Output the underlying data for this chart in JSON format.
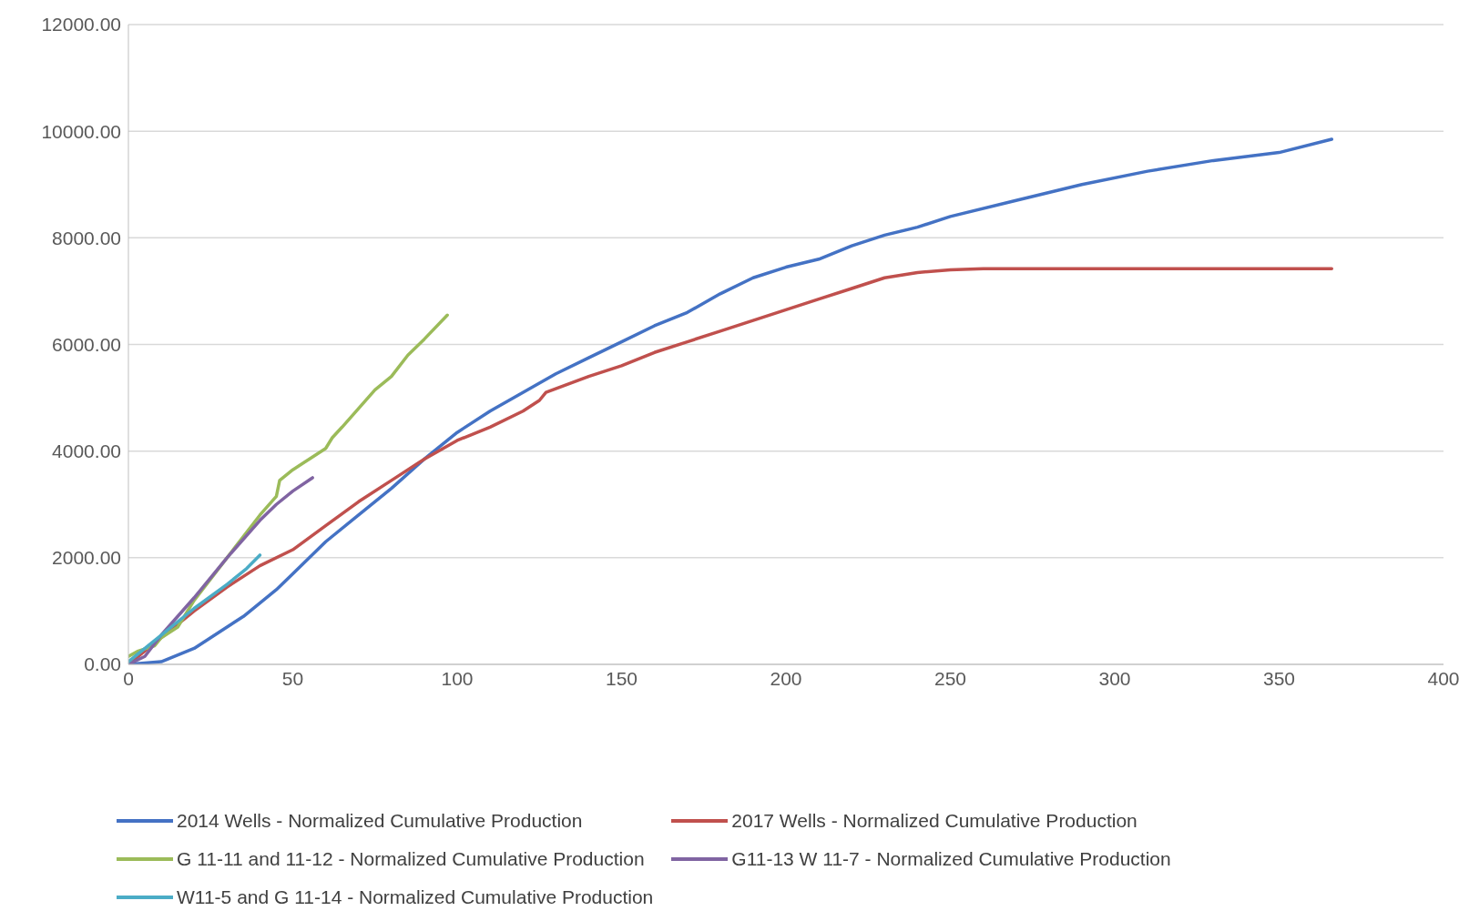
{
  "chart_data": {
    "type": "line",
    "xlim": [
      0,
      400
    ],
    "xticks": [
      0,
      50,
      100,
      150,
      200,
      250,
      300,
      350,
      400
    ],
    "ylim": [
      0,
      12000
    ],
    "yticks": [
      {
        "value": 0,
        "label": "0.00"
      },
      {
        "value": 2000,
        "label": "2000.00"
      },
      {
        "value": 4000,
        "label": "4000.00"
      },
      {
        "value": 6000,
        "label": "6000.00"
      },
      {
        "value": 8000,
        "label": "8000.00"
      },
      {
        "value": 10000,
        "label": "10000.00"
      },
      {
        "value": 12000,
        "label": "12000.00"
      }
    ],
    "grid": "y",
    "legend": "bottom",
    "marker": "none",
    "line_style": "solid",
    "series": [
      {
        "name": "2014 Wells - Normalized Cumulative Production",
        "color": "#4472c4",
        "x": [
          0,
          10,
          20,
          25,
          35,
          40,
          45,
          50,
          60,
          70,
          80,
          90,
          100,
          110,
          120,
          130,
          140,
          150,
          160,
          170,
          180,
          190,
          200,
          210,
          220,
          230,
          240,
          250,
          270,
          290,
          310,
          330,
          350,
          366
        ],
        "values": [
          0,
          50,
          300,
          500,
          900,
          1150,
          1400,
          1700,
          2300,
          2800,
          3300,
          3850,
          4350,
          4750,
          5100,
          5450,
          5750,
          6050,
          6350,
          6600,
          6950,
          7250,
          7450,
          7600,
          7850,
          8050,
          8200,
          8400,
          8700,
          9000,
          9250,
          9450,
          9600,
          9850
        ]
      },
      {
        "name": "2017 Wells - Normalized Cumulative Production",
        "color": "#c0504d",
        "x": [
          0,
          10,
          20,
          30,
          40,
          50,
          60,
          70,
          80,
          90,
          100,
          110,
          120,
          125,
          127,
          140,
          150,
          160,
          170,
          180,
          190,
          200,
          210,
          220,
          230,
          240,
          250,
          260,
          300,
          366
        ],
        "values": [
          0,
          500,
          1000,
          1450,
          1850,
          2150,
          2600,
          3050,
          3450,
          3850,
          4200,
          4450,
          4750,
          4950,
          5100,
          5400,
          5600,
          5850,
          6050,
          6250,
          6450,
          6650,
          6850,
          7050,
          7250,
          7350,
          7400,
          7420,
          7420,
          7420
        ]
      },
      {
        "name": "G 11-11 and 11-12 - Normalized Cumulative Production",
        "color": "#9bbb59",
        "x": [
          0,
          3,
          8,
          10,
          15,
          20,
          30,
          40,
          45,
          46,
          50,
          55,
          60,
          62,
          65,
          70,
          75,
          80,
          85,
          90,
          97
        ],
        "values": [
          150,
          250,
          350,
          500,
          700,
          1200,
          2000,
          2800,
          3150,
          3450,
          3650,
          3850,
          4050,
          4250,
          4450,
          4800,
          5150,
          5400,
          5800,
          6100,
          6550
        ]
      },
      {
        "name": "G11-13 W 11-7 - Normalized Cumulative Production",
        "color": "#8064a2",
        "x": [
          0,
          5,
          10,
          20,
          30,
          40,
          45,
          50,
          56
        ],
        "values": [
          0,
          150,
          550,
          1250,
          2000,
          2700,
          3000,
          3250,
          3500
        ]
      },
      {
        "name": "W11-5 and G 11-14 - Normalized Cumulative Production",
        "color": "#4bacc6",
        "x": [
          0,
          10,
          20,
          30,
          36,
          40
        ],
        "values": [
          50,
          550,
          1050,
          1500,
          1800,
          2050
        ]
      }
    ]
  }
}
